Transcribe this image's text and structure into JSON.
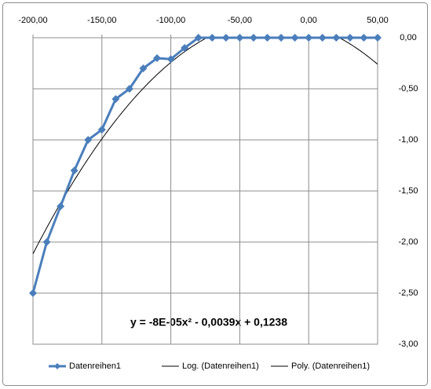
{
  "chart_data": {
    "type": "line",
    "x": [
      -200,
      -190,
      -180,
      -170,
      -160,
      -150,
      -140,
      -130,
      -120,
      -110,
      -100,
      -90,
      -80,
      -70,
      -60,
      -50,
      -40,
      -30,
      -20,
      -10,
      0,
      10,
      20,
      30,
      40,
      50
    ],
    "series": [
      {
        "name": "Datenreihen1",
        "color": "#4a7ebb",
        "values": [
          -2.5,
          -2.0,
          -1.65,
          -1.3,
          -1.0,
          -0.9,
          -0.6,
          -0.5,
          -0.3,
          -0.2,
          -0.21,
          -0.1,
          0,
          0,
          0,
          0,
          0,
          0,
          0,
          0,
          0,
          0,
          0,
          0,
          0,
          0
        ]
      }
    ],
    "trendlines": [
      {
        "name": "Log. (Datenreihen1)",
        "type": "logarithmic",
        "color": "#000000"
      },
      {
        "name": "Poly. (Datenreihen1)",
        "type": "polynomial",
        "order": 2,
        "color": "#000000"
      }
    ],
    "equation": "y = -8E-05x² - 0,0039x + 0,1238",
    "xlim": [
      -200,
      50
    ],
    "ylim": [
      -3,
      0
    ],
    "xticks": [
      {
        "value": -200,
        "label": "-200,00"
      },
      {
        "value": -150,
        "label": "-150,00"
      },
      {
        "value": -100,
        "label": "-100,00"
      },
      {
        "value": -50,
        "label": "-50,00"
      },
      {
        "value": 0,
        "label": "0,00"
      },
      {
        "value": 50,
        "label": "50,00"
      }
    ],
    "yticks": [
      {
        "value": 0,
        "label": "0,00"
      },
      {
        "value": -0.5,
        "label": "-0,50"
      },
      {
        "value": -1,
        "label": "-1,00"
      },
      {
        "value": -1.5,
        "label": "-1,50"
      },
      {
        "value": -2,
        "label": "-2,00"
      },
      {
        "value": -2.5,
        "label": "-2,50"
      },
      {
        "value": -3,
        "label": "-3,00"
      }
    ],
    "grid": true,
    "legend": "bottom"
  }
}
